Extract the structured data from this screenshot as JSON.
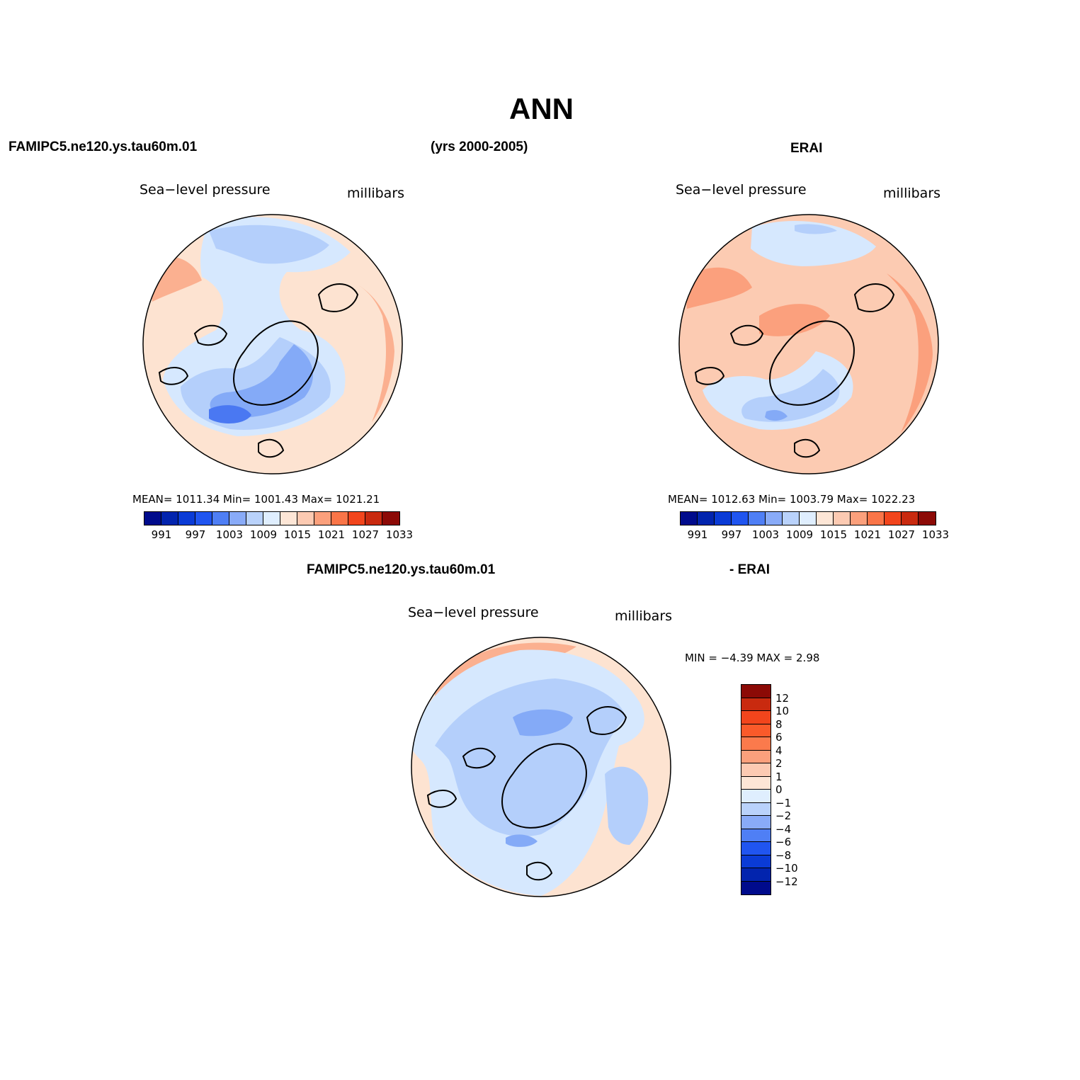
{
  "title": "ANN",
  "header": {
    "case_name": "FAMIPC5.ne120.ys.tau60m.01",
    "years": "(yrs 2000-2005)",
    "obs_name": "ERAI"
  },
  "panels": [
    {
      "variable": "Sea−level pressure",
      "units": "millibars",
      "stats": "MEAN=  1011.34   Min=  1001.43   Max=  1021.21",
      "regions": [
        {
          "level": 1015,
          "color": "#fde3d1"
        },
        {
          "level": 1021,
          "color": "#fbb090"
        },
        {
          "level": 1009,
          "color": "#d6e8fe"
        },
        {
          "level": 1006,
          "color": "#b4cffb"
        },
        {
          "level": 1003,
          "color": "#84aaf7"
        },
        {
          "level": 1001,
          "color": "#4a78f2"
        }
      ]
    },
    {
      "variable": "Sea−level pressure",
      "units": "millibars",
      "stats": "MEAN=  1012.63   Min=  1003.79   Max=  1022.23",
      "regions": [
        {
          "level": 1015,
          "color": "#fccbb2"
        },
        {
          "level": 1021,
          "color": "#fba07d"
        },
        {
          "level": 1009,
          "color": "#d6e8fe"
        },
        {
          "level": 1006,
          "color": "#b4cffb"
        },
        {
          "level": 1003,
          "color": "#84aaf7"
        }
      ]
    }
  ],
  "colorbar_abs": {
    "colors": [
      "#000b8c",
      "#0224ae",
      "#0a3bd6",
      "#2055f0",
      "#4f7ff5",
      "#89abf8",
      "#b9d2fb",
      "#dfeefe",
      "#fde6d6",
      "#fccab2",
      "#fba07c",
      "#fa7548",
      "#f2451c",
      "#c92a0f",
      "#8c0a06"
    ],
    "ticks": [
      "991",
      "997",
      "1003",
      "1009",
      "1015",
      "1021",
      "1027",
      "1033"
    ]
  },
  "diff": {
    "left_title": "FAMIPC5.ne120.ys.tau60m.01",
    "right_title": "- ERAI",
    "variable": "Sea−level pressure",
    "units": "millibars",
    "stats": "MIN =   −4.39  MAX =     2.98",
    "regions": [
      {
        "level": 0,
        "color": "#fde3d1"
      },
      {
        "level": 2,
        "color": "#fbb090"
      },
      {
        "level": -1,
        "color": "#d6e8fe"
      },
      {
        "level": -2,
        "color": "#b4cffb"
      },
      {
        "level": -4,
        "color": "#84aaf7"
      },
      {
        "level": -6,
        "color": "#4a78f2"
      }
    ],
    "colorbar": {
      "colors": [
        "#8c0a06",
        "#c92a0f",
        "#f2451c",
        "#fa5a2a",
        "#fb7a4c",
        "#fba07c",
        "#fccab2",
        "#fde6d6",
        "#dfeefe",
        "#b9d2fb",
        "#89abf8",
        "#4f7ff5",
        "#2055f0",
        "#0a3bd6",
        "#0224ae",
        "#000b8c"
      ],
      "ticks": [
        "12",
        "10",
        "8",
        "6",
        "4",
        "2",
        "1",
        "0",
        "−1",
        "−2",
        "−4",
        "−6",
        "−8",
        "−10",
        "−12"
      ]
    }
  }
}
